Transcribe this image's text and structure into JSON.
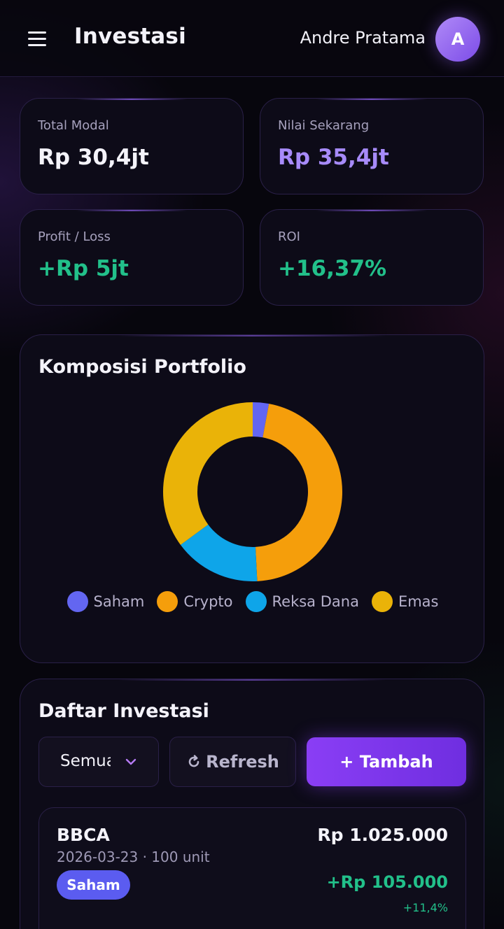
{
  "header": {
    "title": "Investasi",
    "user_name": "Andre Pratama",
    "avatar_initial": "A",
    "menu_icon": "hamburger-menu-icon"
  },
  "stats": {
    "total_modal": {
      "label": "Total Modal",
      "value": "Rp 30,4jt"
    },
    "nilai_sekarang": {
      "label": "Nilai Sekarang",
      "value": "Rp 35,4jt"
    },
    "profit_loss": {
      "label": "Profit / Loss",
      "value": "+Rp 5jt"
    },
    "roi": {
      "label": "ROI",
      "value": "+16,37%"
    }
  },
  "portfolio": {
    "title": "Komposisi Portfolio",
    "legend": [
      {
        "label": "Saham",
        "color": "#6366f1"
      },
      {
        "label": "Crypto",
        "color": "#f59e0b"
      },
      {
        "label": "Reksa Dana",
        "color": "#0ea5e9"
      },
      {
        "label": "Emas",
        "color": "#eab308"
      }
    ]
  },
  "chart_data": {
    "type": "pie",
    "categories": [
      "Saham",
      "Crypto",
      "Reksa Dana",
      "Emas"
    ],
    "values": [
      2.9,
      46.3,
      15.7,
      35.1
    ],
    "colors": [
      "#6366f1",
      "#f59e0b",
      "#0ea5e9",
      "#eab308"
    ],
    "title": "Komposisi Portfolio",
    "legend_position": "bottom"
  },
  "investments": {
    "title": "Daftar Investasi",
    "filter": {
      "value": "Semua",
      "icon": "chevron-down-icon"
    },
    "refresh_label": "Refresh",
    "refresh_icon": "refresh-icon",
    "add_label": "+ Tambah",
    "items": [
      {
        "code": "BBCA",
        "meta": "2026-03-23 · 100 unit",
        "type": "Saham",
        "value": "Rp 1.025.000",
        "profit": "+Rp 105.000",
        "pct": "+11,4%"
      }
    ]
  }
}
